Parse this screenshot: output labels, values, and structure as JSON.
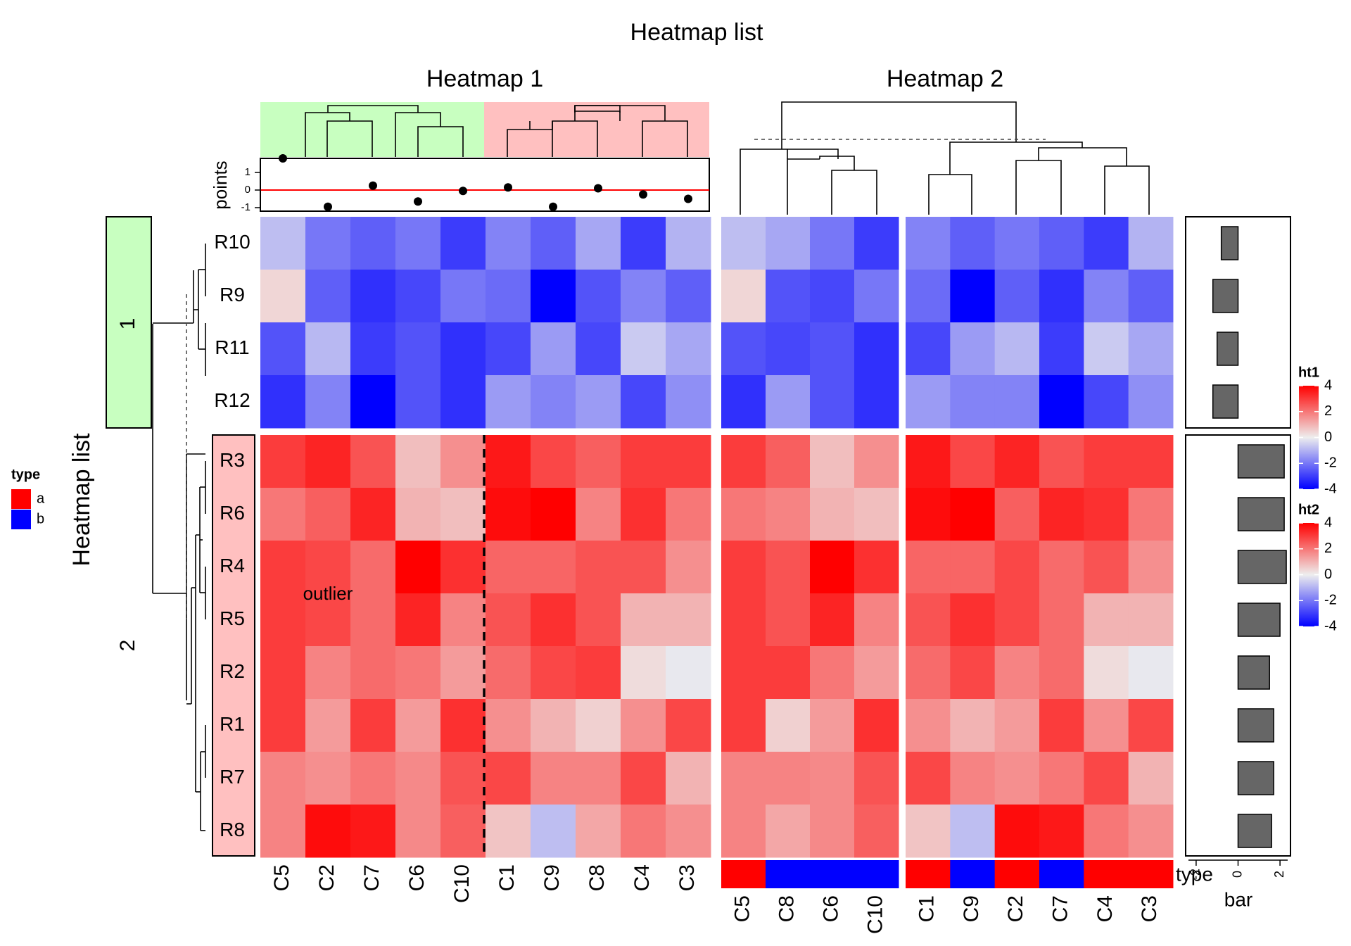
{
  "chart_data": {
    "type": "heatmap",
    "title": "Heatmap list",
    "row_title": "Heatmap list",
    "rows": [
      "R10",
      "R9",
      "R11",
      "R12",
      "R3",
      "R6",
      "R4",
      "R5",
      "R2",
      "R1",
      "R7",
      "R8"
    ],
    "row_split_labels": [
      "1",
      "2"
    ],
    "heatmaps": [
      {
        "name": "Heatmap 1",
        "legend_name": "ht1",
        "columns": [
          "C5",
          "C2",
          "C7",
          "C6",
          "C10",
          "C1",
          "C9",
          "C8",
          "C4",
          "C3"
        ],
        "values": [
          [
            -0.8,
            -2.0,
            -2.4,
            -2.0,
            -3.0,
            -1.8,
            -2.4,
            -1.2,
            -3.0,
            -1.0
          ],
          [
            0.4,
            -2.4,
            -3.2,
            -2.8,
            -2.0,
            -2.2,
            -4.0,
            -2.6,
            -1.8,
            -2.4
          ],
          [
            -2.6,
            -0.9,
            -3.0,
            -2.6,
            -3.2,
            -2.8,
            -1.4,
            -2.8,
            -0.6,
            -1.2
          ],
          [
            -3.2,
            -1.8,
            -4.2,
            -2.6,
            -3.2,
            -1.4,
            -1.8,
            -1.4,
            -2.8,
            -1.6
          ],
          [
            3.0,
            3.4,
            2.6,
            0.8,
            1.6,
            3.6,
            2.8,
            2.4,
            3.0,
            3.0
          ],
          [
            2.0,
            2.4,
            3.4,
            1.0,
            0.8,
            3.8,
            4.2,
            1.8,
            3.2,
            2.0
          ],
          [
            3.0,
            2.8,
            2.2,
            4.2,
            3.2,
            2.3,
            2.3,
            2.6,
            2.6,
            1.6
          ],
          [
            3.0,
            2.8,
            2.2,
            3.4,
            1.8,
            2.6,
            3.2,
            2.6,
            1.0,
            1.0
          ],
          [
            3.0,
            1.8,
            2.2,
            2.0,
            1.4,
            2.2,
            2.8,
            3.0,
            0.3,
            -0.1
          ],
          [
            3.0,
            1.4,
            3.0,
            1.4,
            3.2,
            1.6,
            1.0,
            0.5,
            1.6,
            2.8
          ],
          [
            1.8,
            1.6,
            2.0,
            1.7,
            2.6,
            2.8,
            1.8,
            1.8,
            2.8,
            1.0
          ],
          [
            1.8,
            3.8,
            3.6,
            1.7,
            2.4,
            0.7,
            -0.8,
            1.2,
            2.0,
            1.6
          ]
        ],
        "column_split": [
          [
            "C5",
            "C2",
            "C7",
            "C6",
            "C10"
          ],
          [
            "C1",
            "C9",
            "C8",
            "C4",
            "C3"
          ]
        ],
        "points_annotation": {
          "name": "points",
          "ticks": [
            1,
            0,
            -1
          ],
          "ylim": [
            -1.2,
            1.8
          ],
          "values": [
            1.8,
            -0.95,
            0.25,
            -0.65,
            -0.05,
            0.15,
            -0.95,
            0.1,
            -0.25,
            -0.5
          ]
        },
        "text_annotation": "outlier"
      },
      {
        "name": "Heatmap 2",
        "legend_name": "ht2",
        "columns": [
          "C5",
          "C8",
          "C6",
          "C10",
          "C1",
          "C9",
          "C2",
          "C7",
          "C4",
          "C3"
        ],
        "values": [
          [
            -0.8,
            -1.2,
            -2.0,
            -3.0,
            -1.8,
            -2.4,
            -2.0,
            -2.4,
            -3.0,
            -1.0
          ],
          [
            0.4,
            -2.6,
            -2.8,
            -2.0,
            -2.2,
            -4.0,
            -2.4,
            -3.2,
            -1.8,
            -2.4
          ],
          [
            -2.6,
            -2.8,
            -2.6,
            -3.2,
            -2.8,
            -1.4,
            -0.9,
            -3.0,
            -0.6,
            -1.2
          ],
          [
            -3.2,
            -1.4,
            -2.6,
            -3.2,
            -1.4,
            -1.8,
            -1.8,
            -4.2,
            -2.8,
            -1.6
          ],
          [
            3.0,
            2.4,
            0.8,
            1.6,
            3.6,
            2.8,
            3.4,
            2.6,
            3.0,
            3.0
          ],
          [
            2.0,
            1.8,
            1.0,
            0.8,
            3.8,
            4.2,
            2.4,
            3.4,
            3.2,
            2.0
          ],
          [
            3.0,
            2.6,
            4.2,
            3.2,
            2.3,
            2.3,
            2.8,
            2.2,
            2.6,
            1.6
          ],
          [
            3.0,
            2.6,
            3.4,
            1.8,
            2.6,
            3.2,
            2.8,
            2.2,
            1.0,
            1.0
          ],
          [
            3.0,
            3.0,
            2.0,
            1.4,
            2.2,
            2.8,
            1.8,
            2.2,
            0.3,
            -0.1
          ],
          [
            3.0,
            0.5,
            1.4,
            3.2,
            1.6,
            1.0,
            1.4,
            3.0,
            1.6,
            2.8
          ],
          [
            1.8,
            1.8,
            1.7,
            2.6,
            2.8,
            1.8,
            1.6,
            2.0,
            2.8,
            1.0
          ],
          [
            1.8,
            1.2,
            1.7,
            2.4,
            0.7,
            -0.8,
            3.8,
            3.6,
            2.0,
            1.6
          ]
        ],
        "column_split": [
          [
            "C5",
            "C8",
            "C6",
            "C10"
          ],
          [
            "C1",
            "C9",
            "C2",
            "C7",
            "C4",
            "C3"
          ]
        ],
        "type_annotation": {
          "name": "type",
          "values": [
            "a",
            "b",
            "b",
            "b",
            "a",
            "b",
            "a",
            "b",
            "a",
            "a"
          ]
        }
      }
    ],
    "bar_annotation": {
      "name": "bar",
      "ticks": [
        -2,
        0,
        2
      ],
      "xlim": [
        -2.5,
        2.5
      ],
      "values": [
        -0.8,
        -1.2,
        -1.0,
        -1.2,
        2.2,
        2.2,
        2.3,
        2.0,
        1.5,
        1.7,
        1.7,
        1.6
      ]
    },
    "legends": [
      {
        "name": "type",
        "entries": [
          {
            "label": "a",
            "color": "#FF0000"
          },
          {
            "label": "b",
            "color": "#0000FF"
          }
        ]
      },
      {
        "name": "ht1",
        "breaks": [
          4,
          2,
          0,
          -2,
          -4
        ]
      },
      {
        "name": "ht2",
        "breaks": [
          4,
          2,
          0,
          -2,
          -4
        ]
      }
    ],
    "colors": {
      "low": "#0000FF",
      "mid": "#EEEEEE",
      "high": "#FF0000",
      "split_green": "#C8FFC0",
      "split_pink": "#FFC0C0",
      "bar_fill": "#666666",
      "points_line": "#FF0000"
    }
  }
}
